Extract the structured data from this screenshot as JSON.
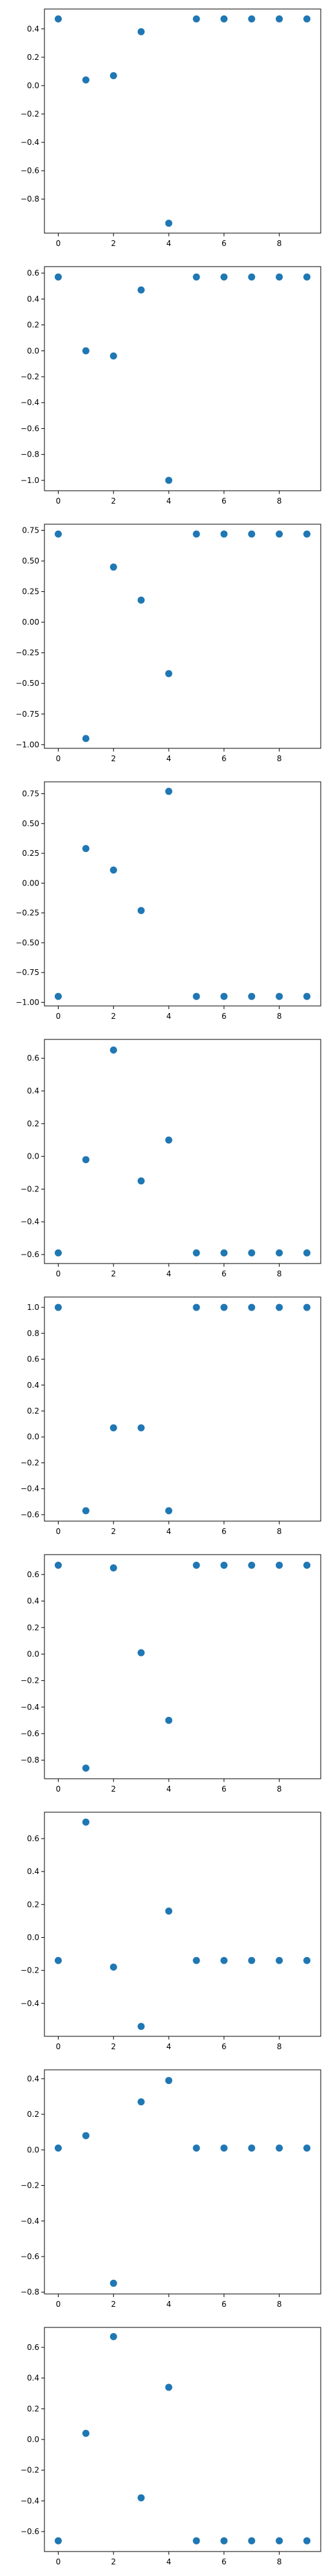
{
  "style": {
    "point_color": "#1f77b4",
    "axes_color": "#000000",
    "background": "#ffffff"
  },
  "chart_data": [
    {
      "type": "scatter",
      "x": [
        0,
        1,
        2,
        3,
        4,
        5,
        6,
        7,
        8,
        9
      ],
      "y": [
        0.47,
        0.04,
        0.07,
        0.38,
        -0.97,
        0.47,
        0.47,
        0.47,
        0.47,
        0.47
      ],
      "xlim": [
        -0.5,
        9.5
      ],
      "ylim": [
        -1.04,
        0.54
      ],
      "xticks": [
        0,
        2,
        4,
        6,
        8
      ],
      "yticks": [
        0.4,
        0.2,
        0.0,
        -0.2,
        -0.4,
        -0.6,
        -0.8
      ],
      "ytick_labels": [
        "0.4",
        "0.2",
        "0.0",
        "−0.2",
        "−0.4",
        "−0.6",
        "−0.8"
      ]
    },
    {
      "type": "scatter",
      "x": [
        0,
        1,
        2,
        3,
        4,
        5,
        6,
        7,
        8,
        9
      ],
      "y": [
        0.57,
        0.0,
        -0.04,
        0.47,
        -1.0,
        0.57,
        0.57,
        0.57,
        0.57,
        0.57
      ],
      "xlim": [
        -0.5,
        9.5
      ],
      "ylim": [
        -1.08,
        0.65
      ],
      "xticks": [
        0,
        2,
        4,
        6,
        8
      ],
      "yticks": [
        0.6,
        0.4,
        0.2,
        0.0,
        -0.2,
        -0.4,
        -0.6,
        -0.8,
        -1.0
      ],
      "ytick_labels": [
        "0.6",
        "0.4",
        "0.2",
        "0.0",
        "−0.2",
        "−0.4",
        "−0.6",
        "−0.8",
        "−1.0"
      ]
    },
    {
      "type": "scatter",
      "x": [
        0,
        1,
        2,
        3,
        4,
        5,
        6,
        7,
        8,
        9
      ],
      "y": [
        0.72,
        -0.95,
        0.45,
        0.18,
        -0.42,
        0.72,
        0.72,
        0.72,
        0.72,
        0.72
      ],
      "xlim": [
        -0.5,
        9.5
      ],
      "ylim": [
        -1.03,
        0.8
      ],
      "xticks": [
        0,
        2,
        4,
        6,
        8
      ],
      "yticks": [
        0.75,
        0.5,
        0.25,
        0.0,
        -0.25,
        -0.5,
        -0.75,
        -1.0
      ],
      "ytick_labels": [
        "0.75",
        "0.50",
        "0.25",
        "0.00",
        "−0.25",
        "−0.50",
        "−0.75",
        "−1.00"
      ]
    },
    {
      "type": "scatter",
      "x": [
        0,
        1,
        2,
        3,
        4,
        5,
        6,
        7,
        8,
        9
      ],
      "y": [
        -0.95,
        0.29,
        0.11,
        -0.23,
        0.77,
        -0.95,
        -0.95,
        -0.95,
        -0.95,
        -0.95
      ],
      "xlim": [
        -0.5,
        9.5
      ],
      "ylim": [
        -1.03,
        0.85
      ],
      "xticks": [
        0,
        2,
        4,
        6,
        8
      ],
      "yticks": [
        0.75,
        0.5,
        0.25,
        0.0,
        -0.25,
        -0.5,
        -0.75,
        -1.0
      ],
      "ytick_labels": [
        "0.75",
        "0.50",
        "0.25",
        "0.00",
        "−0.25",
        "−0.50",
        "−0.75",
        "−1.00"
      ]
    },
    {
      "type": "scatter",
      "x": [
        0,
        1,
        2,
        3,
        4,
        5,
        6,
        7,
        8,
        9
      ],
      "y": [
        -0.59,
        -0.02,
        0.65,
        -0.15,
        0.1,
        -0.59,
        -0.59,
        -0.59,
        -0.59,
        -0.59
      ],
      "xlim": [
        -0.5,
        9.5
      ],
      "ylim": [
        -0.655,
        0.715
      ],
      "xticks": [
        0,
        2,
        4,
        6,
        8
      ],
      "yticks": [
        0.6,
        0.4,
        0.2,
        0.0,
        -0.2,
        -0.4,
        -0.6
      ],
      "ytick_labels": [
        "0.6",
        "0.4",
        "0.2",
        "0.0",
        "−0.2",
        "−0.4",
        "−0.6"
      ]
    },
    {
      "type": "scatter",
      "x": [
        0,
        1,
        2,
        3,
        4,
        5,
        6,
        7,
        8,
        9
      ],
      "y": [
        1.0,
        -0.57,
        0.07,
        0.07,
        -0.57,
        1.0,
        1.0,
        1.0,
        1.0,
        1.0
      ],
      "xlim": [
        -0.5,
        9.5
      ],
      "ylim": [
        -0.65,
        1.08
      ],
      "xticks": [
        0,
        2,
        4,
        6,
        8
      ],
      "yticks": [
        1.0,
        0.8,
        0.6,
        0.4,
        0.2,
        0.0,
        -0.2,
        -0.4,
        -0.6
      ],
      "ytick_labels": [
        "1.0",
        "0.8",
        "0.6",
        "0.4",
        "0.2",
        "0.0",
        "−0.2",
        "−0.4",
        "−0.6"
      ]
    },
    {
      "type": "scatter",
      "x": [
        0,
        1,
        2,
        3,
        4,
        5,
        6,
        7,
        8,
        9
      ],
      "y": [
        0.67,
        -0.86,
        0.65,
        0.01,
        -0.5,
        0.67,
        0.67,
        0.67,
        0.67,
        0.67
      ],
      "xlim": [
        -0.5,
        9.5
      ],
      "ylim": [
        -0.94,
        0.75
      ],
      "xticks": [
        0,
        2,
        4,
        6,
        8
      ],
      "yticks": [
        0.6,
        0.4,
        0.2,
        0.0,
        -0.2,
        -0.4,
        -0.6,
        -0.8
      ],
      "ytick_labels": [
        "0.6",
        "0.4",
        "0.2",
        "0.0",
        "−0.2",
        "−0.4",
        "−0.6",
        "−0.8"
      ]
    },
    {
      "type": "scatter",
      "x": [
        0,
        1,
        2,
        3,
        4,
        5,
        6,
        7,
        8,
        9
      ],
      "y": [
        -0.14,
        0.7,
        -0.18,
        -0.54,
        0.16,
        -0.14,
        -0.14,
        -0.14,
        -0.14,
        -0.14
      ],
      "xlim": [
        -0.5,
        9.5
      ],
      "ylim": [
        -0.6,
        0.76
      ],
      "xticks": [
        0,
        2,
        4,
        6,
        8
      ],
      "yticks": [
        0.6,
        0.4,
        0.2,
        0.0,
        -0.2,
        -0.4
      ],
      "ytick_labels": [
        "0.6",
        "0.4",
        "0.2",
        "0.0",
        "−0.2",
        "−0.4"
      ]
    },
    {
      "type": "scatter",
      "x": [
        0,
        1,
        2,
        3,
        4,
        5,
        6,
        7,
        8,
        9
      ],
      "y": [
        0.01,
        0.08,
        -0.75,
        0.27,
        0.39,
        0.01,
        0.01,
        0.01,
        0.01,
        0.01
      ],
      "xlim": [
        -0.5,
        9.5
      ],
      "ylim": [
        -0.81,
        0.45
      ],
      "xticks": [
        0,
        2,
        4,
        6,
        8
      ],
      "yticks": [
        0.4,
        0.2,
        0.0,
        -0.2,
        -0.4,
        -0.6,
        -0.8
      ],
      "ytick_labels": [
        "0.4",
        "0.2",
        "0.0",
        "−0.2",
        "−0.4",
        "−0.6",
        "−0.8"
      ]
    },
    {
      "type": "scatter",
      "x": [
        0,
        1,
        2,
        3,
        4,
        5,
        6,
        7,
        8,
        9
      ],
      "y": [
        -0.66,
        0.04,
        0.67,
        -0.38,
        0.34,
        -0.66,
        -0.66,
        -0.66,
        -0.66,
        -0.66
      ],
      "xlim": [
        -0.5,
        9.5
      ],
      "ylim": [
        -0.73,
        0.73
      ],
      "xticks": [
        0,
        2,
        4,
        6,
        8
      ],
      "yticks": [
        0.6,
        0.4,
        0.2,
        0.0,
        -0.2,
        -0.4,
        -0.6
      ],
      "ytick_labels": [
        "0.6",
        "0.4",
        "0.2",
        "0.0",
        "−0.2",
        "−0.4",
        "−0.6"
      ]
    }
  ]
}
